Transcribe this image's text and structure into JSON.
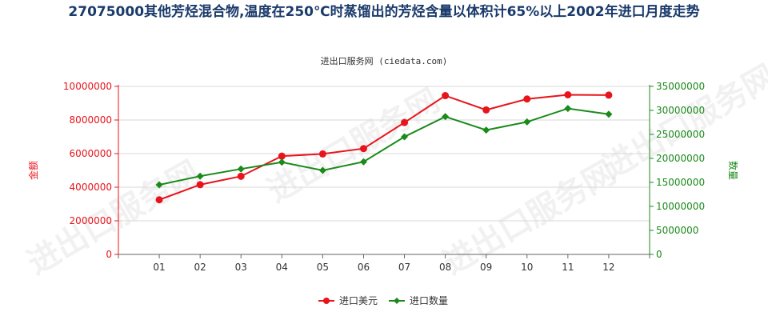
{
  "chart_data": {
    "type": "line",
    "title": "27075000其他芳烃混合物,温度在250℃时蒸馏出的芳烃含量以体积计65%以上2002年进口月度走势",
    "subtitle": "进出口服务网 (ciedata.com)",
    "watermark": "进出口服务网",
    "categories": [
      "01",
      "02",
      "03",
      "04",
      "05",
      "06",
      "07",
      "08",
      "09",
      "10",
      "11",
      "12"
    ],
    "ylabel_left": "金额",
    "ylabel_right": "数量",
    "ylim_left": [
      0,
      10000000
    ],
    "ylim_right": [
      0,
      35000000
    ],
    "yticks_left": [
      "0",
      "2000000",
      "4000000",
      "6000000",
      "8000000",
      "10000000"
    ],
    "yticks_right": [
      "0",
      "5000000",
      "10000000",
      "15000000",
      "20000000",
      "25000000",
      "30000000",
      "35000000"
    ],
    "series": [
      {
        "name": "进口美元",
        "axis": "left",
        "color": "#e8141b",
        "marker": "circle",
        "values": [
          3250000,
          4150000,
          4650000,
          5850000,
          5980000,
          6300000,
          7850000,
          9450000,
          8600000,
          9250000,
          9500000,
          9480000
        ]
      },
      {
        "name": "进口数量",
        "axis": "right",
        "color": "#1a8a1a",
        "marker": "diamond",
        "values": [
          14500000,
          16300000,
          17800000,
          19200000,
          17500000,
          19300000,
          24500000,
          28700000,
          25900000,
          27600000,
          30400000,
          29200000
        ]
      }
    ],
    "legend_position": "bottom"
  }
}
